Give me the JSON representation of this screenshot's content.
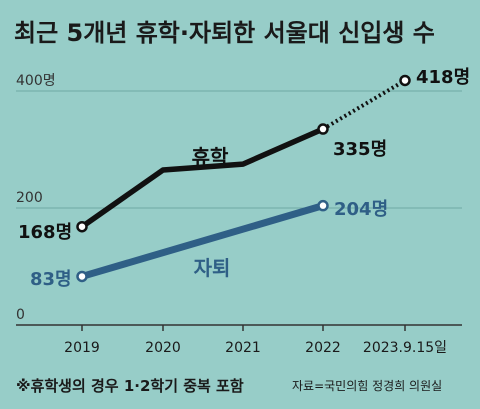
{
  "chart_data": {
    "type": "line",
    "title": "최근 5개년 휴학·자퇴한 서울대 신입생 수",
    "categories": [
      "2019",
      "2020",
      "2021",
      "2022",
      "2023.9.15일"
    ],
    "y_ticks": [
      "400명",
      "200",
      "0"
    ],
    "y_tick_values": [
      400,
      200,
      0
    ],
    "ylim": [
      0,
      440
    ],
    "grid": true,
    "series": [
      {
        "name": "휴학",
        "values": [
          168,
          265,
          275,
          335,
          418
        ],
        "color": "#111111",
        "dotted_last_segment": true,
        "labels": {
          "0": "168명",
          "3": "335명",
          "4": "418명"
        }
      },
      {
        "name": "자퇴",
        "values": [
          83,
          null,
          null,
          204,
          null
        ],
        "color": "#2f5f86",
        "labels": {
          "0": "83명",
          "3": "204명"
        }
      }
    ],
    "footnote": "※휴학생의 경우 1·2학기 중복 포함",
    "source": "자료=국민의힘 정경희 의원실"
  }
}
